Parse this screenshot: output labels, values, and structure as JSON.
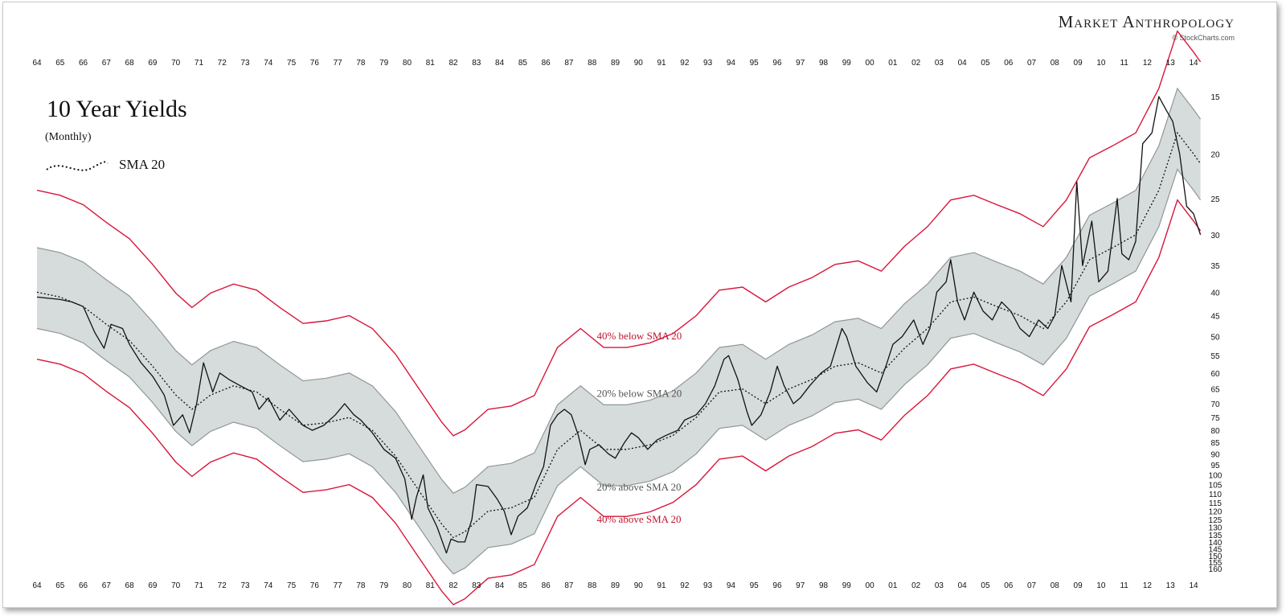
{
  "branding": {
    "name": "Market Anthropology",
    "credit": "© StockCharts.com"
  },
  "chart_data": {
    "type": "line",
    "title": "10 Year Yields",
    "subtitle": "(Monthly)",
    "legend": [
      {
        "name": "SMA 20",
        "style": "dotted"
      }
    ],
    "x_ticks": [
      "64",
      "65",
      "66",
      "67",
      "68",
      "69",
      "70",
      "71",
      "72",
      "73",
      "74",
      "75",
      "76",
      "77",
      "78",
      "79",
      "80",
      "81",
      "82",
      "83",
      "84",
      "85",
      "86",
      "87",
      "88",
      "89",
      "90",
      "91",
      "92",
      "93",
      "94",
      "95",
      "96",
      "97",
      "98",
      "99",
      "00",
      "01",
      "02",
      "03",
      "04",
      "05",
      "06",
      "07",
      "08",
      "09",
      "10",
      "11",
      "12",
      "13",
      "14"
    ],
    "y_axis": {
      "scale": "log",
      "inverted": true,
      "ylim": [
        14,
        160
      ],
      "ticks": [
        15,
        20,
        25,
        30,
        35,
        40,
        45,
        50,
        55,
        60,
        65,
        70,
        75,
        80,
        85,
        90,
        95,
        100,
        105,
        110,
        115,
        120,
        125,
        130,
        135,
        140,
        145,
        150,
        155,
        160
      ]
    },
    "band_labels": {
      "outer_upper": "40% below SMA 20",
      "inner_upper": "20% below SMA 20",
      "inner_lower": "20% above SMA 20",
      "outer_lower": "40% above SMA 20"
    },
    "series": [
      {
        "name": "10 Year Yields (x10)",
        "points": [
          [
            1964.0,
            41
          ],
          [
            1965.0,
            41.5
          ],
          [
            1965.5,
            42
          ],
          [
            1966.0,
            43
          ],
          [
            1966.5,
            49
          ],
          [
            1966.9,
            53
          ],
          [
            1967.2,
            47
          ],
          [
            1967.7,
            48
          ],
          [
            1968.0,
            52
          ],
          [
            1968.5,
            57
          ],
          [
            1969.0,
            61
          ],
          [
            1969.5,
            67
          ],
          [
            1969.9,
            78
          ],
          [
            1970.3,
            74
          ],
          [
            1970.6,
            81
          ],
          [
            1970.9,
            70
          ],
          [
            1971.2,
            57
          ],
          [
            1971.6,
            66
          ],
          [
            1971.9,
            60
          ],
          [
            1972.3,
            62
          ],
          [
            1972.8,
            64
          ],
          [
            1973.3,
            66
          ],
          [
            1973.6,
            72
          ],
          [
            1974.0,
            68
          ],
          [
            1974.5,
            76
          ],
          [
            1974.9,
            72
          ],
          [
            1975.5,
            78
          ],
          [
            1975.9,
            80
          ],
          [
            1976.4,
            78
          ],
          [
            1976.9,
            74
          ],
          [
            1977.3,
            70
          ],
          [
            1977.7,
            74
          ],
          [
            1978.0,
            76
          ],
          [
            1978.5,
            81
          ],
          [
            1979.0,
            88
          ],
          [
            1979.5,
            92
          ],
          [
            1979.9,
            102
          ],
          [
            1980.2,
            125
          ],
          [
            1980.4,
            112
          ],
          [
            1980.7,
            100
          ],
          [
            1980.9,
            118
          ],
          [
            1981.3,
            130
          ],
          [
            1981.7,
            148
          ],
          [
            1981.9,
            138
          ],
          [
            1982.2,
            140
          ],
          [
            1982.5,
            140
          ],
          [
            1982.8,
            125
          ],
          [
            1983.0,
            105
          ],
          [
            1983.5,
            106
          ],
          [
            1983.9,
            113
          ],
          [
            1984.2,
            120
          ],
          [
            1984.5,
            135
          ],
          [
            1984.8,
            123
          ],
          [
            1985.2,
            118
          ],
          [
            1985.6,
            104
          ],
          [
            1985.9,
            96
          ],
          [
            1986.2,
            78
          ],
          [
            1986.5,
            74
          ],
          [
            1986.8,
            72
          ],
          [
            1987.1,
            74
          ],
          [
            1987.4,
            82
          ],
          [
            1987.7,
            95
          ],
          [
            1987.9,
            88
          ],
          [
            1988.3,
            86
          ],
          [
            1988.7,
            90
          ],
          [
            1989.0,
            92
          ],
          [
            1989.4,
            85
          ],
          [
            1989.7,
            81
          ],
          [
            1990.0,
            83
          ],
          [
            1990.4,
            88
          ],
          [
            1990.8,
            84
          ],
          [
            1991.2,
            82
          ],
          [
            1991.7,
            80
          ],
          [
            1992.0,
            76
          ],
          [
            1992.5,
            74
          ],
          [
            1992.9,
            70
          ],
          [
            1993.3,
            64
          ],
          [
            1993.7,
            56
          ],
          [
            1993.9,
            55
          ],
          [
            1994.3,
            62
          ],
          [
            1994.7,
            73
          ],
          [
            1994.9,
            78
          ],
          [
            1995.3,
            74
          ],
          [
            1995.7,
            66
          ],
          [
            1996.0,
            58
          ],
          [
            1996.3,
            64
          ],
          [
            1996.7,
            70
          ],
          [
            1997.0,
            68
          ],
          [
            1997.4,
            64
          ],
          [
            1997.9,
            60
          ],
          [
            1998.3,
            58
          ],
          [
            1998.8,
            48
          ],
          [
            1999.0,
            50
          ],
          [
            1999.4,
            58
          ],
          [
            1999.9,
            63
          ],
          [
            2000.3,
            66
          ],
          [
            2000.7,
            58
          ],
          [
            2001.0,
            52
          ],
          [
            2001.4,
            50
          ],
          [
            2001.9,
            46
          ],
          [
            2002.3,
            52
          ],
          [
            2002.6,
            48
          ],
          [
            2002.9,
            40
          ],
          [
            2003.3,
            38
          ],
          [
            2003.5,
            34
          ],
          [
            2003.8,
            42
          ],
          [
            2004.1,
            46
          ],
          [
            2004.5,
            40
          ],
          [
            2004.9,
            44
          ],
          [
            2005.3,
            46
          ],
          [
            2005.7,
            42
          ],
          [
            2006.1,
            44
          ],
          [
            2006.5,
            48
          ],
          [
            2006.9,
            50
          ],
          [
            2007.3,
            46
          ],
          [
            2007.7,
            48
          ],
          [
            2008.0,
            45
          ],
          [
            2008.3,
            35
          ],
          [
            2008.7,
            42
          ],
          [
            2008.95,
            23
          ],
          [
            2009.2,
            35
          ],
          [
            2009.6,
            28
          ],
          [
            2009.9,
            38
          ],
          [
            2010.3,
            36
          ],
          [
            2010.7,
            25
          ],
          [
            2010.9,
            33
          ],
          [
            2011.2,
            34
          ],
          [
            2011.5,
            31
          ],
          [
            2011.8,
            19
          ],
          [
            2012.2,
            18
          ],
          [
            2012.5,
            15
          ],
          [
            2012.8,
            16
          ],
          [
            2013.1,
            17
          ],
          [
            2013.4,
            20
          ],
          [
            2013.7,
            26
          ],
          [
            2014.0,
            27
          ],
          [
            2014.2,
            29
          ],
          [
            2014.3,
            30
          ]
        ]
      },
      {
        "name": "SMA 20",
        "points": [
          [
            1964.0,
            40
          ],
          [
            1965.0,
            41
          ],
          [
            1966.0,
            43
          ],
          [
            1967.0,
            47
          ],
          [
            1968.0,
            51
          ],
          [
            1969.0,
            58
          ],
          [
            1970.0,
            67
          ],
          [
            1970.7,
            72
          ],
          [
            1971.5,
            67
          ],
          [
            1972.5,
            64
          ],
          [
            1973.5,
            66
          ],
          [
            1974.5,
            72
          ],
          [
            1975.5,
            78
          ],
          [
            1976.5,
            77
          ],
          [
            1977.5,
            75
          ],
          [
            1978.5,
            80
          ],
          [
            1979.5,
            91
          ],
          [
            1980.5,
            108
          ],
          [
            1981.5,
            128
          ],
          [
            1982.0,
            137
          ],
          [
            1982.5,
            133
          ],
          [
            1983.5,
            120
          ],
          [
            1984.5,
            118
          ],
          [
            1985.5,
            112
          ],
          [
            1986.5,
            88
          ],
          [
            1987.5,
            80
          ],
          [
            1988.5,
            88
          ],
          [
            1989.5,
            88
          ],
          [
            1990.5,
            86
          ],
          [
            1991.5,
            82
          ],
          [
            1992.5,
            75
          ],
          [
            1993.5,
            66
          ],
          [
            1994.5,
            65
          ],
          [
            1995.5,
            70
          ],
          [
            1996.5,
            65
          ],
          [
            1997.5,
            62
          ],
          [
            1998.5,
            58
          ],
          [
            1999.5,
            57
          ],
          [
            2000.5,
            60
          ],
          [
            2001.5,
            53
          ],
          [
            2002.5,
            48
          ],
          [
            2003.5,
            42
          ],
          [
            2004.5,
            41
          ],
          [
            2005.5,
            43
          ],
          [
            2006.5,
            45
          ],
          [
            2007.5,
            48
          ],
          [
            2008.5,
            42
          ],
          [
            2009.5,
            34
          ],
          [
            2010.5,
            32
          ],
          [
            2011.5,
            30
          ],
          [
            2012.5,
            24
          ],
          [
            2013.3,
            18
          ],
          [
            2014.0,
            20
          ],
          [
            2014.3,
            21
          ]
        ]
      }
    ],
    "bands": {
      "inner_factor": 0.2,
      "outer_factor": 0.4
    },
    "colors": {
      "price": "#111111",
      "sma": "#111111",
      "band_fill": "#d5dcdb",
      "band_edge": "#8f9897",
      "outer": "#d9153a",
      "outer_label": "#c0142f",
      "inner_label": "#555555"
    }
  }
}
